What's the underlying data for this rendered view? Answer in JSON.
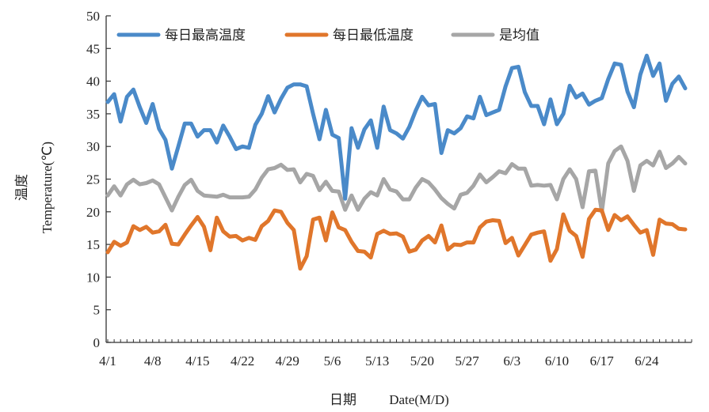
{
  "chart_data": {
    "type": "line",
    "xlabel_cn": "日期",
    "xlabel_en": "Date(M/D)",
    "ylabel_cn": "温度",
    "ylabel_en": "Temperature(℃)",
    "ylim": [
      0,
      50
    ],
    "yticks": [
      0,
      5,
      10,
      15,
      20,
      25,
      30,
      35,
      40,
      45,
      50
    ],
    "x_tick_labels": [
      "4/1",
      "4/8",
      "4/15",
      "4/22",
      "4/29",
      "5/6",
      "5/13",
      "5/20",
      "5/27",
      "6/3",
      "6/10",
      "6/17",
      "6/24"
    ],
    "x_tick_day_index": [
      0,
      7,
      14,
      21,
      28,
      35,
      42,
      49,
      56,
      63,
      70,
      77,
      84
    ],
    "n_days": 91,
    "legend_position": "top",
    "series": [
      {
        "name": "每日最高温度",
        "color": "#4a8ac9",
        "values": [
          36.8,
          38.0,
          33.8,
          37.6,
          38.7,
          36.0,
          33.6,
          36.5,
          32.7,
          31.0,
          26.6,
          30.0,
          33.5,
          33.5,
          31.5,
          32.5,
          32.5,
          30.6,
          33.2,
          31.5,
          29.6,
          30.0,
          29.8,
          33.3,
          35.0,
          37.7,
          35.2,
          37.3,
          39.0,
          39.5,
          39.5,
          39.2,
          35.0,
          31.1,
          35.6,
          31.8,
          31.3,
          22.0,
          32.8,
          29.8,
          32.6,
          34.0,
          29.8,
          36.1,
          32.5,
          32.0,
          31.2,
          33.0,
          35.5,
          37.6,
          36.3,
          36.5,
          29.0,
          32.5,
          32.0,
          32.8,
          34.6,
          34.3,
          37.6,
          34.8,
          35.2,
          35.6,
          39.2,
          42.0,
          42.2,
          38.3,
          36.2,
          36.2,
          33.4,
          37.2,
          33.4,
          35.0,
          39.3,
          37.5,
          38.1,
          36.4,
          37.0,
          37.4,
          40.3,
          42.7,
          42.5,
          38.4,
          36.0,
          41.0,
          43.9,
          40.8,
          42.7,
          37.0,
          39.6,
          40.7,
          38.9
        ]
      },
      {
        "name": "每日最低温度",
        "color": "#e0762b",
        "values": [
          13.8,
          15.4,
          14.8,
          15.3,
          17.8,
          17.2,
          17.7,
          16.8,
          17.0,
          18.0,
          15.1,
          15.0,
          16.5,
          17.9,
          19.2,
          17.7,
          14.1,
          19.1,
          17.0,
          16.2,
          16.3,
          15.6,
          16.0,
          15.7,
          17.8,
          18.6,
          20.2,
          20.0,
          18.3,
          17.2,
          11.3,
          13.2,
          18.8,
          19.1,
          15.6,
          19.9,
          17.6,
          17.2,
          15.4,
          14.0,
          13.9,
          13.0,
          16.6,
          17.1,
          16.6,
          16.7,
          16.2,
          13.9,
          14.2,
          15.6,
          16.3,
          15.3,
          17.9,
          14.2,
          15.0,
          14.9,
          15.3,
          15.3,
          17.6,
          18.5,
          18.7,
          18.6,
          15.2,
          16.0,
          13.3,
          14.9,
          16.5,
          16.8,
          17.0,
          12.5,
          14.3,
          19.6,
          17.1,
          16.3,
          13.1,
          18.9,
          20.3,
          20.2,
          17.2,
          19.5,
          18.7,
          19.3,
          18.0,
          16.8,
          17.2,
          13.4,
          18.8,
          18.2,
          18.1,
          17.4,
          17.3
        ]
      },
      {
        "name": "是均值",
        "color": "#a6a6a6",
        "values": [
          22.5,
          23.9,
          22.5,
          24.2,
          24.9,
          24.2,
          24.4,
          24.8,
          24.2,
          22.2,
          20.2,
          22.3,
          24.1,
          24.9,
          23.2,
          22.5,
          22.4,
          22.3,
          22.6,
          22.2,
          22.2,
          22.2,
          22.3,
          23.4,
          25.2,
          26.5,
          26.7,
          27.2,
          26.4,
          26.5,
          24.5,
          25.8,
          25.5,
          23.3,
          24.6,
          23.2,
          23.1,
          20.3,
          22.5,
          20.3,
          22.0,
          23.0,
          22.5,
          25.0,
          23.4,
          23.1,
          21.9,
          21.9,
          23.7,
          25.0,
          24.5,
          23.4,
          22.1,
          21.2,
          20.5,
          22.6,
          22.9,
          24.0,
          25.7,
          24.5,
          25.3,
          26.2,
          25.9,
          27.3,
          26.6,
          26.6,
          24.0,
          24.1,
          24.0,
          24.1,
          21.9,
          25.0,
          26.5,
          25.0,
          20.7,
          26.2,
          26.3,
          20.0,
          27.4,
          29.3,
          30.0,
          27.8,
          23.2,
          27.1,
          27.8,
          27.1,
          29.2,
          26.7,
          27.4,
          28.4,
          27.4
        ]
      }
    ]
  }
}
